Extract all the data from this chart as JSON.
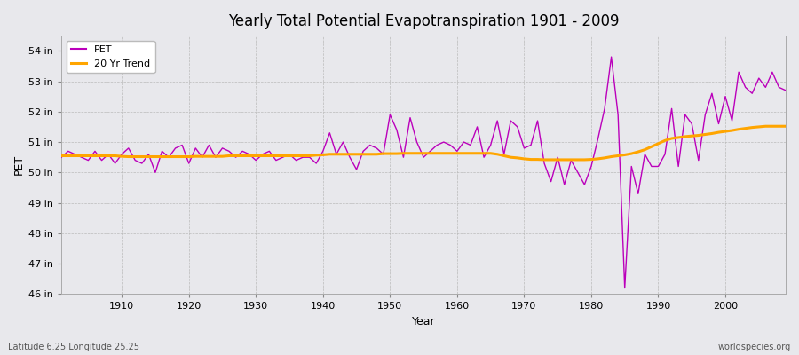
{
  "title": "Yearly Total Potential Evapotranspiration 1901 - 2009",
  "xlabel": "Year",
  "ylabel": "PET",
  "subtitle": "Latitude 6.25 Longitude 25.25",
  "watermark": "worldspecies.org",
  "pet_color": "#bb00bb",
  "trend_color": "#ffa500",
  "bg_color": "#e8e8ec",
  "plot_bg_color": "#e8e8ec",
  "ylim": [
    46,
    54.5
  ],
  "yticks": [
    46,
    47,
    48,
    49,
    50,
    51,
    52,
    53,
    54
  ],
  "ytick_labels": [
    "46 in",
    "47 in",
    "48 in",
    "49 in",
    "50 in",
    "51 in",
    "52 in",
    "53 in",
    "54 in"
  ],
  "xlim": [
    1901,
    2009
  ],
  "xticks": [
    1910,
    1920,
    1930,
    1940,
    1950,
    1960,
    1970,
    1980,
    1990,
    2000
  ],
  "years": [
    1901,
    1902,
    1903,
    1904,
    1905,
    1906,
    1907,
    1908,
    1909,
    1910,
    1911,
    1912,
    1913,
    1914,
    1915,
    1916,
    1917,
    1918,
    1919,
    1920,
    1921,
    1922,
    1923,
    1924,
    1925,
    1926,
    1927,
    1928,
    1929,
    1930,
    1931,
    1932,
    1933,
    1934,
    1935,
    1936,
    1937,
    1938,
    1939,
    1940,
    1941,
    1942,
    1943,
    1944,
    1945,
    1946,
    1947,
    1948,
    1949,
    1950,
    1951,
    1952,
    1953,
    1954,
    1955,
    1956,
    1957,
    1958,
    1959,
    1960,
    1961,
    1962,
    1963,
    1964,
    1965,
    1966,
    1967,
    1968,
    1969,
    1970,
    1971,
    1972,
    1973,
    1974,
    1975,
    1976,
    1977,
    1978,
    1979,
    1980,
    1981,
    1982,
    1983,
    1984,
    1985,
    1986,
    1987,
    1988,
    1989,
    1990,
    1991,
    1992,
    1993,
    1994,
    1995,
    1996,
    1997,
    1998,
    1999,
    2000,
    2001,
    2002,
    2003,
    2004,
    2005,
    2006,
    2007,
    2008,
    2009
  ],
  "pet_values": [
    50.5,
    50.7,
    50.6,
    50.5,
    50.4,
    50.7,
    50.4,
    50.6,
    50.3,
    50.6,
    50.8,
    50.4,
    50.3,
    50.6,
    50.0,
    50.7,
    50.5,
    50.8,
    50.9,
    50.3,
    50.8,
    50.5,
    50.9,
    50.5,
    50.8,
    50.7,
    50.5,
    50.7,
    50.6,
    50.4,
    50.6,
    50.7,
    50.4,
    50.5,
    50.6,
    50.4,
    50.5,
    50.5,
    50.3,
    50.7,
    51.3,
    50.6,
    51.0,
    50.5,
    50.1,
    50.7,
    50.9,
    50.8,
    50.6,
    51.9,
    51.4,
    50.5,
    51.8,
    51.0,
    50.5,
    50.7,
    50.9,
    51.0,
    50.9,
    50.7,
    51.0,
    50.9,
    51.5,
    50.5,
    50.9,
    51.7,
    50.6,
    51.7,
    51.5,
    50.8,
    50.9,
    51.7,
    50.3,
    49.7,
    50.5,
    49.6,
    50.4,
    50.0,
    49.6,
    50.2,
    51.1,
    52.1,
    53.8,
    51.9,
    46.2,
    50.2,
    49.3,
    50.6,
    50.2,
    50.2,
    50.6,
    52.1,
    50.2,
    51.9,
    51.6,
    50.4,
    51.9,
    52.6,
    51.6,
    52.5,
    51.7,
    53.3,
    52.8,
    52.6,
    53.1,
    52.8,
    53.3,
    52.8,
    52.7
  ],
  "trend_values": [
    50.55,
    50.55,
    50.55,
    50.55,
    50.55,
    50.55,
    50.55,
    50.55,
    50.55,
    50.53,
    50.52,
    50.52,
    50.52,
    50.52,
    50.52,
    50.52,
    50.52,
    50.52,
    50.52,
    50.52,
    50.53,
    50.53,
    50.53,
    50.53,
    50.53,
    50.55,
    50.55,
    50.55,
    50.55,
    50.55,
    50.55,
    50.55,
    50.55,
    50.55,
    50.55,
    50.55,
    50.55,
    50.55,
    50.57,
    50.58,
    50.6,
    50.6,
    50.6,
    50.6,
    50.6,
    50.6,
    50.6,
    50.6,
    50.62,
    50.62,
    50.62,
    50.63,
    50.63,
    50.63,
    50.63,
    50.63,
    50.63,
    50.63,
    50.63,
    50.63,
    50.63,
    50.63,
    50.63,
    50.63,
    50.63,
    50.6,
    50.55,
    50.5,
    50.48,
    50.45,
    50.43,
    50.43,
    50.42,
    50.42,
    50.42,
    50.42,
    50.42,
    50.42,
    50.42,
    50.43,
    50.45,
    50.48,
    50.52,
    50.55,
    50.58,
    50.62,
    50.68,
    50.75,
    50.85,
    50.95,
    51.05,
    51.12,
    51.15,
    51.18,
    51.2,
    51.22,
    51.25,
    51.28,
    51.32,
    51.35,
    51.38,
    51.42,
    51.45,
    51.48,
    51.5,
    51.52,
    51.52,
    51.52,
    51.52
  ]
}
